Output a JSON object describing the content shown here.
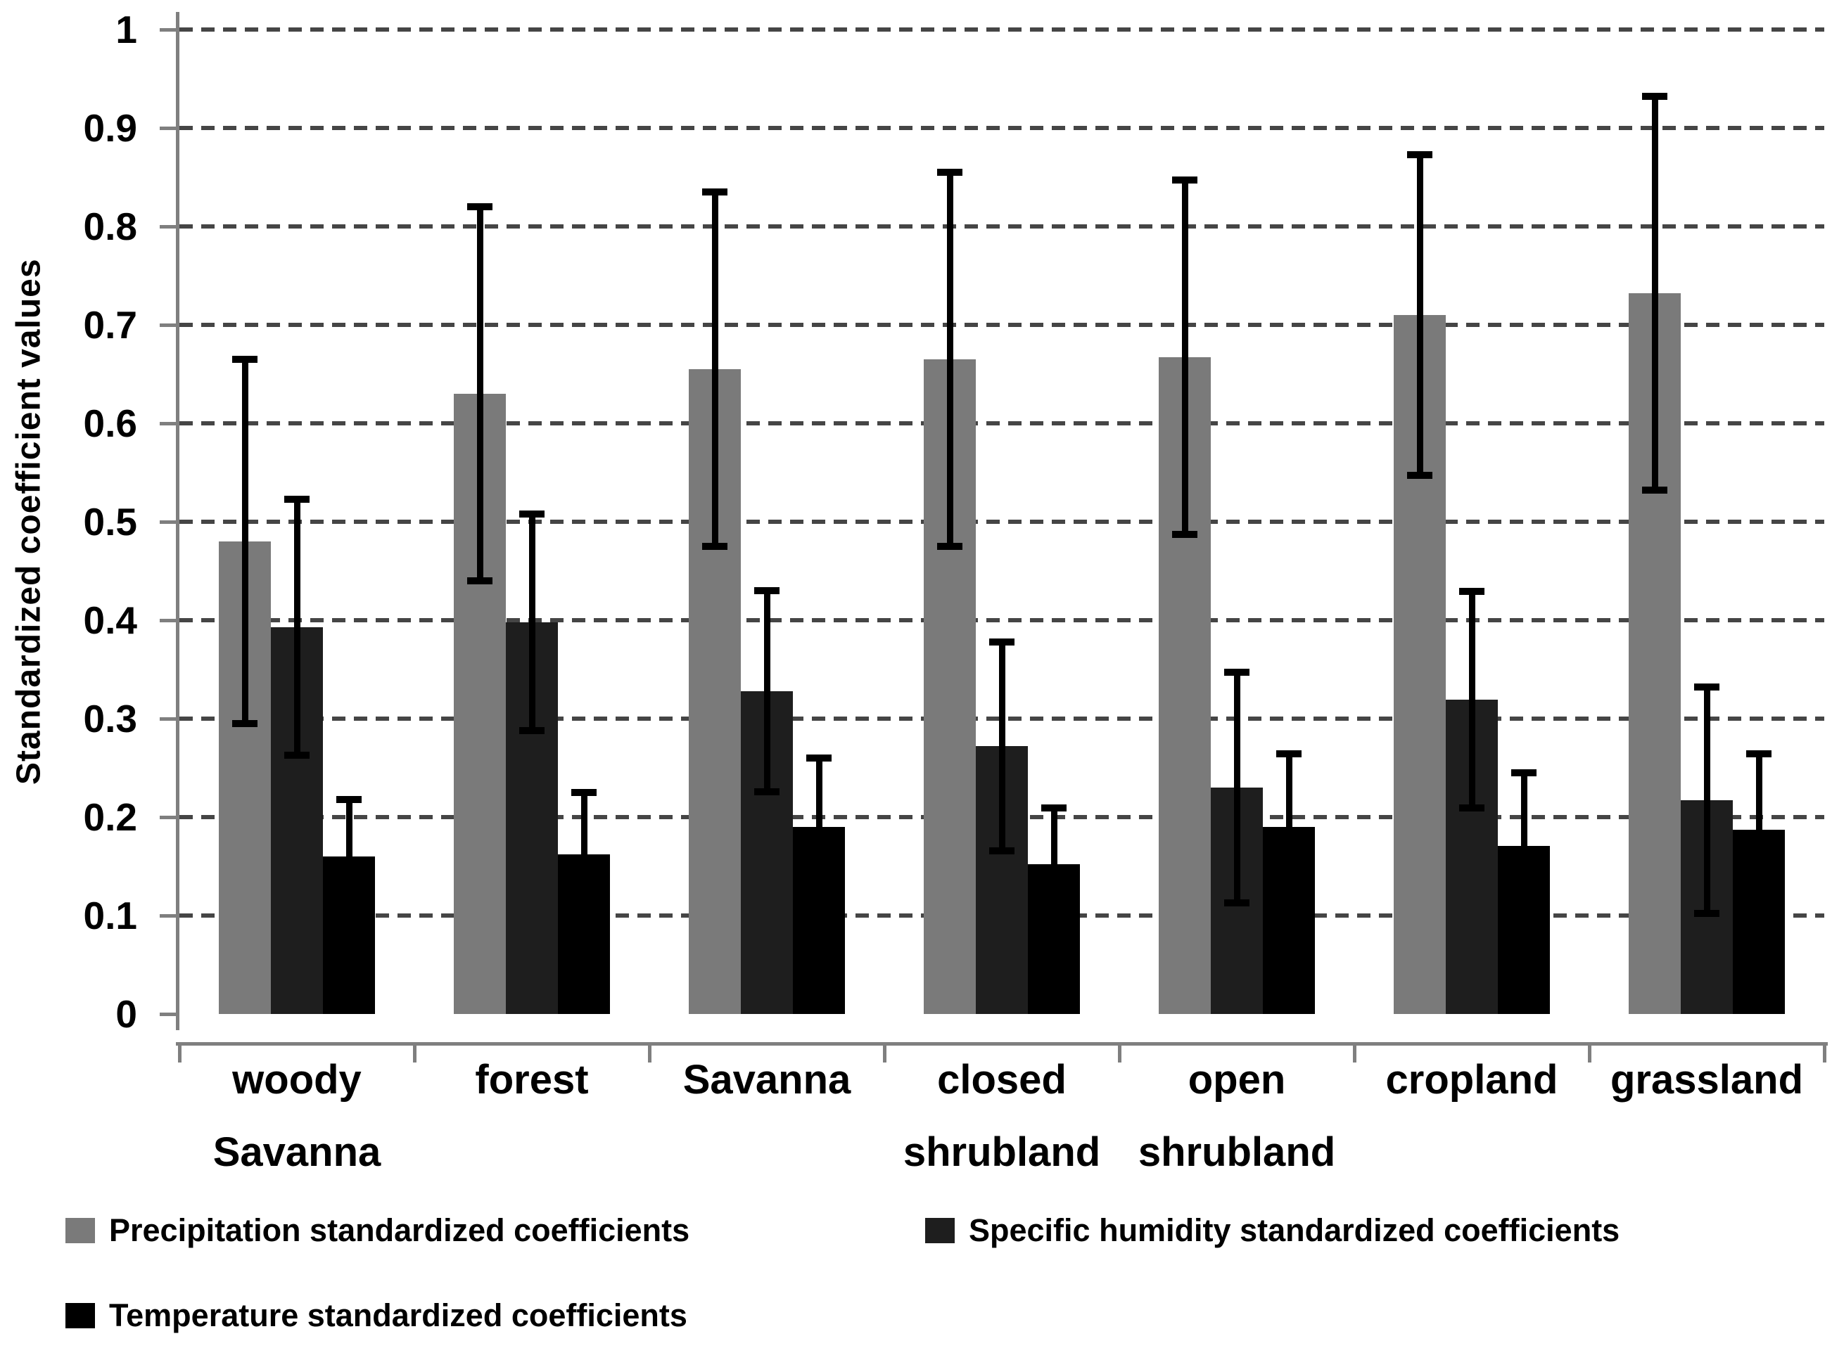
{
  "chart_data": {
    "type": "bar",
    "title": "",
    "ylabel": "Standardized coefficient values",
    "xlabel": "",
    "ylim": [
      0,
      1
    ],
    "yticks": [
      0,
      0.1,
      0.2,
      0.3,
      0.4,
      0.5,
      0.6,
      0.7,
      0.8,
      0.9,
      1
    ],
    "ytick_labels": [
      "0",
      "0.1",
      "0.2",
      "0.3",
      "0.4",
      "0.5",
      "0.6",
      "0.7",
      "0.8",
      "0.9",
      "1"
    ],
    "grid": "horizontal-dashed",
    "legend_position": "bottom",
    "error_bars": "symmetric, shown on every bar",
    "categories": [
      "woody\nSavanna",
      "forest",
      "Savanna",
      "closed\nshrubland",
      "open\nshrubland",
      "cropland",
      "grassland"
    ],
    "series": [
      {
        "name": "Precipitation standardized coefficients",
        "key": "precipitation",
        "color": "#7a7a7a",
        "values": [
          0.48,
          0.63,
          0.655,
          0.665,
          0.667,
          0.71,
          0.732
        ],
        "errors": [
          0.185,
          0.19,
          0.18,
          0.19,
          0.18,
          0.163,
          0.2
        ]
      },
      {
        "name": "Specific humidity standardized coefficients",
        "key": "specific-humidity",
        "color": "#1e1e1e",
        "values": [
          0.393,
          0.398,
          0.328,
          0.272,
          0.23,
          0.319,
          0.217
        ],
        "errors": [
          0.13,
          0.11,
          0.102,
          0.106,
          0.117,
          0.11,
          0.115
        ]
      },
      {
        "name": "Temperature standardized coefficients",
        "key": "temperature",
        "color": "#000000",
        "values": [
          0.16,
          0.162,
          0.19,
          0.152,
          0.19,
          0.171,
          0.187
        ],
        "errors": [
          0.058,
          0.063,
          0.07,
          0.057,
          0.074,
          0.074,
          0.077
        ]
      }
    ]
  }
}
